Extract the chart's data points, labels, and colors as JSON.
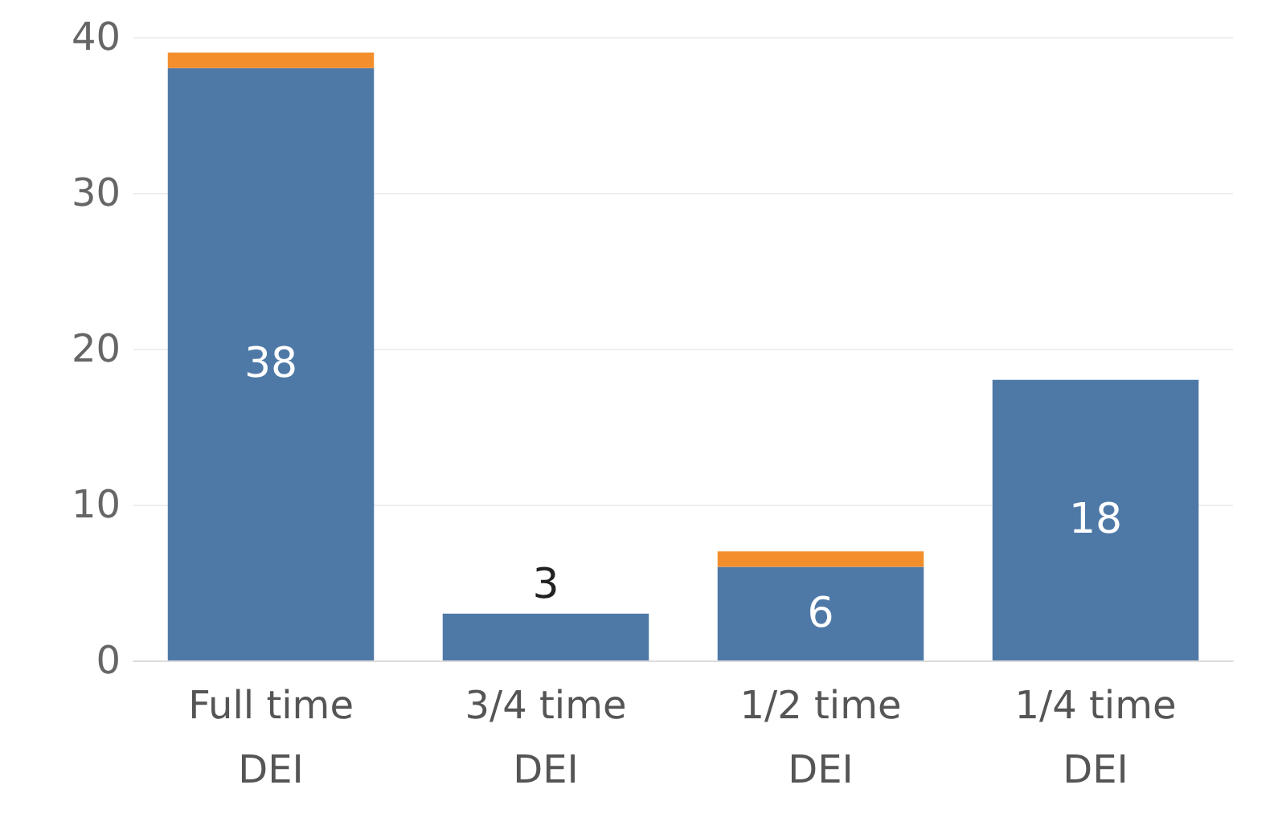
{
  "chart_data": {
    "type": "bar",
    "stacked": true,
    "categories": [
      "Full time\nDEI",
      "3/4 time\nDEI",
      "1/2 time\nDEI",
      "1/4 time\nDEI"
    ],
    "series": [
      {
        "color": "#4e79a7",
        "values": [
          38,
          3,
          6,
          18
        ],
        "value_labels": [
          "38",
          "3",
          "6",
          "18"
        ]
      },
      {
        "color": "#f28e2b",
        "values": [
          1,
          null,
          1,
          null
        ]
      }
    ],
    "ylim": [
      0,
      40
    ],
    "yticks": [
      0,
      10,
      20,
      30,
      40
    ],
    "grid": "y"
  }
}
